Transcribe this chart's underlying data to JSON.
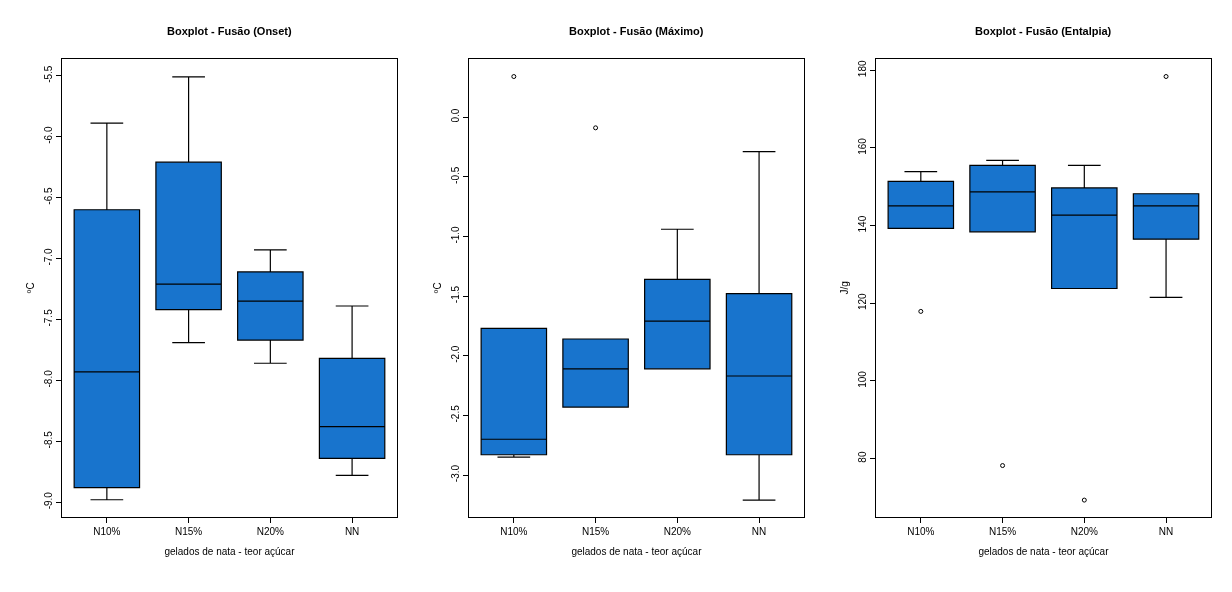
{
  "chart_data": [
    {
      "type": "box",
      "title": "Boxplot - Fusão (Onset)",
      "xlabel": "gelados de nata - teor açúcar",
      "ylabel": "ºC",
      "categories": [
        "N10%",
        "N15%",
        "N20%",
        "NN"
      ],
      "color": "#1874cd",
      "ylim": [
        -9.12,
        -5.36
      ],
      "yticks": [
        {
          "value": -9.0,
          "label": "-9.0"
        },
        {
          "value": -8.5,
          "label": "-8.5"
        },
        {
          "value": -8.0,
          "label": "-8.0"
        },
        {
          "value": -7.5,
          "label": "-7.5"
        },
        {
          "value": -7.0,
          "label": "-7.0"
        },
        {
          "value": -6.5,
          "label": "-6.5"
        },
        {
          "value": -6.0,
          "label": "-6.0"
        },
        {
          "value": -5.5,
          "label": "-5.5"
        }
      ],
      "boxes": [
        {
          "low": -8.98,
          "q1": -8.88,
          "median": -7.93,
          "q3": -6.6,
          "high": -5.89
        },
        {
          "low": -7.69,
          "q1": -7.42,
          "median": -7.21,
          "q3": -6.21,
          "high": -5.51
        },
        {
          "low": -7.86,
          "q1": -7.67,
          "median": -7.35,
          "q3": -7.11,
          "high": -6.93
        },
        {
          "low": -8.78,
          "q1": -8.64,
          "median": -8.38,
          "q3": -7.82,
          "high": -7.39
        }
      ]
    },
    {
      "type": "box",
      "title": "Boxplot - Fusão (Máximo)",
      "xlabel": "gelados de nata - teor açúcar",
      "ylabel": "ºC",
      "categories": [
        "N10%",
        "N15%",
        "N20%",
        "NN"
      ],
      "color": "#1874cd",
      "ylim": [
        -3.35,
        0.49
      ],
      "yticks": [
        {
          "value": -3.0,
          "label": "-3.0"
        },
        {
          "value": -2.5,
          "label": "-2.5"
        },
        {
          "value": -2.0,
          "label": "-2.0"
        },
        {
          "value": -1.5,
          "label": "-1.5"
        },
        {
          "value": -1.0,
          "label": "-1.0"
        },
        {
          "value": -0.5,
          "label": "-0.5"
        },
        {
          "value": 0,
          "label": "0.0"
        }
      ],
      "boxes": [
        {
          "low": -2.85,
          "q1": -2.83,
          "median": -2.7,
          "q3": -1.77,
          "high": -1.77,
          "outliers": [
            0.34
          ]
        },
        {
          "low": -2.43,
          "q1": -2.43,
          "median": -2.11,
          "q3": -1.86,
          "high": -1.86,
          "outliers": [
            -0.09
          ]
        },
        {
          "low": -2.11,
          "q1": -2.11,
          "median": -1.71,
          "q3": -1.36,
          "high": -0.94
        },
        {
          "low": -3.21,
          "q1": -2.83,
          "median": -2.17,
          "q3": -1.48,
          "high": -0.29
        }
      ]
    },
    {
      "type": "box",
      "title": "Boxplot - Fusão (Entalpia)",
      "xlabel": "gelados de nata - teor açúcar",
      "ylabel": "J/g",
      "categories": [
        "N10%",
        "N15%",
        "N20%",
        "NN"
      ],
      "color": "#1874cd",
      "ylim": [
        65,
        183
      ],
      "yticks": [
        80,
        100,
        120,
        140,
        160,
        180
      ],
      "boxes": [
        {
          "low": 139.3,
          "q1": 139.3,
          "median": 145.1,
          "q3": 151.4,
          "high": 153.9,
          "outliers": [
            117.9
          ]
        },
        {
          "low": 138.4,
          "q1": 138.4,
          "median": 148.7,
          "q3": 155.5,
          "high": 156.8,
          "outliers": [
            78.2
          ]
        },
        {
          "low": 123.8,
          "q1": 123.8,
          "median": 142.7,
          "q3": 149.7,
          "high": 155.5,
          "outliers": [
            69.3
          ]
        },
        {
          "low": 121.5,
          "q1": 136.5,
          "median": 145.1,
          "q3": 148.2,
          "high": 148.2,
          "outliers": [
            178.4
          ]
        }
      ]
    }
  ]
}
